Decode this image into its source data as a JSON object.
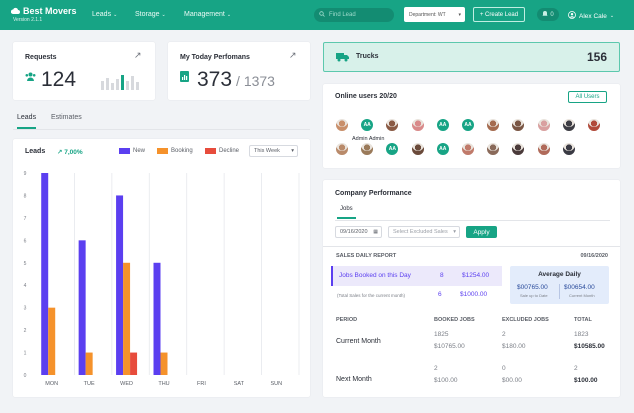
{
  "app": {
    "name": "Best Movers",
    "version": "Version 2.1.1"
  },
  "nav": {
    "leads": "Leads",
    "storage": "Storage",
    "management": "Management"
  },
  "search": {
    "placeholder": "Find Lead"
  },
  "department": {
    "label": "Department: WT"
  },
  "create_button": "+ Create Lead",
  "notifications": {
    "count": "0"
  },
  "user": {
    "name": "Alex Cale"
  },
  "requests": {
    "title": "Requests",
    "value": "124"
  },
  "performance": {
    "title": "My Today Perfomans",
    "value": "373",
    "total": "/ 1373"
  },
  "trucks": {
    "label": "Trucks",
    "count": "156"
  },
  "tabs": {
    "leads": "Leads",
    "estimates": "Estimates"
  },
  "leads_chart": {
    "title": "Leads",
    "change": "7,00%",
    "legend": {
      "new": "New",
      "booking": "Booking",
      "decline": "Decline"
    },
    "period": "This Week"
  },
  "chart_data": {
    "type": "bar",
    "categories": [
      "MON",
      "TUE",
      "WED",
      "THU",
      "FRI",
      "SAT",
      "SUN"
    ],
    "series": [
      {
        "name": "New",
        "values": [
          9,
          6,
          8,
          5,
          0,
          0,
          0
        ],
        "color": "#5b3ff0"
      },
      {
        "name": "Booking",
        "values": [
          3,
          1,
          5,
          1,
          0,
          0,
          0
        ],
        "color": "#f5922b"
      },
      {
        "name": "Decline",
        "values": [
          0,
          0,
          1,
          0,
          0,
          0,
          0
        ],
        "color": "#e74c3c"
      }
    ],
    "ylim": [
      0,
      9
    ],
    "yticks": [
      "0",
      "1",
      "2",
      "3",
      "4",
      "5",
      "6",
      "7",
      "8",
      "9"
    ]
  },
  "online_users": {
    "title": "Online users 20/20",
    "all_button": "All Users",
    "tooltip": "Admin Admin",
    "row1": [
      {
        "type": "photo",
        "color": "#c98f6a"
      },
      {
        "type": "initials",
        "initials": "AA"
      },
      {
        "type": "photo",
        "color": "#8a5a44"
      },
      {
        "type": "photo",
        "color": "#d98a8a"
      },
      {
        "type": "initials",
        "initials": "AA"
      },
      {
        "type": "initials",
        "initials": "AA"
      },
      {
        "type": "photo",
        "color": "#a56b4f"
      },
      {
        "type": "photo",
        "color": "#7a5644"
      },
      {
        "type": "photo",
        "color": "#d9a0a0"
      },
      {
        "type": "photo",
        "color": "#3d3d44"
      },
      {
        "type": "photo",
        "color": "#b14a3a"
      }
    ],
    "row2": [
      {
        "type": "photo",
        "color": "#b98a6a"
      },
      {
        "type": "photo",
        "color": "#9a7a5a"
      },
      {
        "type": "initials",
        "initials": "AA"
      },
      {
        "type": "photo",
        "color": "#6a4a3a"
      },
      {
        "type": "initials",
        "initials": "AA"
      },
      {
        "type": "photo",
        "color": "#c07a6a"
      },
      {
        "type": "photo",
        "color": "#8a6a5a"
      },
      {
        "type": "photo",
        "color": "#4a3a3a"
      },
      {
        "type": "photo",
        "color": "#b06a5a"
      },
      {
        "type": "photo",
        "color": "#3a3a44"
      }
    ]
  },
  "company": {
    "title": "Company Performance",
    "tab": "Jobs",
    "date": "09/16/2020",
    "excluded": "Select Excluded Sales",
    "apply": "Apply",
    "report_title": "SALES DAILY REPORT",
    "report_date": "09/16/2020",
    "booked_label": "Jobs Booked on this Day",
    "booked_count": "8",
    "booked_amount": "$1254.00",
    "total_label": "(Total Sales for the current month)",
    "total_count": "6",
    "total_amount": "$1000.00",
    "avg_title": "Average Daily",
    "avg1_value": "$00765.00",
    "avg1_label": "Sale up to Date",
    "avg2_value": "$00654.00",
    "avg2_label": "Current Month",
    "headers": {
      "period": "PERIOD",
      "booked": "BOOKED JOBS",
      "excluded": "EXCLUDED JOBS",
      "total": "TOTAL"
    },
    "rows": [
      {
        "period": "Current Month",
        "booked_n": "1825",
        "booked_v": "$10765.00",
        "excl_n": "2",
        "excl_v": "$180.00",
        "total_n": "1823",
        "total_v": "$10585.00"
      },
      {
        "period": "Next Month",
        "booked_n": "2",
        "booked_v": "$100.00",
        "excl_n": "0",
        "excl_v": "$00.00",
        "total_n": "2",
        "total_v": "$100.00"
      }
    ]
  }
}
